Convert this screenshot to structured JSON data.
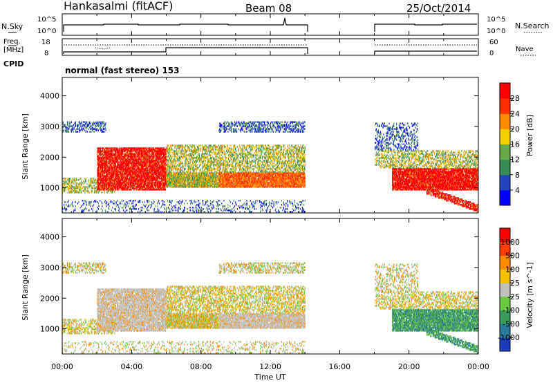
{
  "header": {
    "station": "Hankasalmi (fitACF)",
    "beam": "Beam 08",
    "date": "25/Oct/2014"
  },
  "sky_panel": {
    "left_label": "N.Sky",
    "right_label": "N.Search",
    "left_ticks": [
      "10^5",
      "10^0"
    ],
    "right_ticks": [
      "10^5",
      "10^0"
    ]
  },
  "freq_panel": {
    "left_label_1": "Freq.",
    "left_label_2": "[MHz]",
    "left_ticks": [
      "18",
      "8"
    ],
    "right_label": "Nave",
    "right_ticks": [
      "60",
      "0"
    ],
    "cpid_label": "CPID"
  },
  "cpid_text": "normal (fast stereo) 153",
  "colors": {
    "frame": "#000000",
    "background": "#ffffff",
    "ground_scatter": "#c0c0bc"
  },
  "chart_data": [
    {
      "type": "heatmap",
      "panel": "power",
      "ylabel": "Slant Range [km]",
      "yticks": [
        "4000",
        "3000",
        "2000",
        "1000"
      ],
      "ylim": [
        180,
        4600
      ],
      "xlim": [
        0,
        24
      ],
      "colorbar_label": "Power [dB]",
      "colorbar_ticks": [
        "28",
        "24",
        "20",
        "16",
        "12",
        "8",
        "4"
      ],
      "colorbar_colors": [
        "#0000ff",
        "#2244bb",
        "#3a8a54",
        "#66a84a",
        "#f0d000",
        "#ff8c00",
        "#ff3000",
        "#ff0000"
      ],
      "data_gap_hours": [
        14.0,
        18.0
      ]
    },
    {
      "type": "heatmap",
      "panel": "velocity",
      "ylabel": "Slant Range [km]",
      "yticks": [
        "4000",
        "3000",
        "2000",
        "1000"
      ],
      "ylim": [
        180,
        4600
      ],
      "xlim": [
        0,
        24
      ],
      "colorbar_label": "Velocity [m s^-1]",
      "colorbar_ticks": [
        "1000",
        "500",
        "100",
        "25",
        "-25",
        "-100",
        "-500",
        "-1000"
      ],
      "colorbar_colors": [
        "#1c3cbf",
        "#2a7a9a",
        "#3a9a5c",
        "#6ac840",
        "#c0c0bc",
        "#f5c000",
        "#ff8c00",
        "#ff4000",
        "#ff0000"
      ],
      "xlabel": "Time UT",
      "xticks": [
        "00:00",
        "04:00",
        "08:00",
        "12:00",
        "16:00",
        "20:00",
        "00:00"
      ]
    }
  ]
}
